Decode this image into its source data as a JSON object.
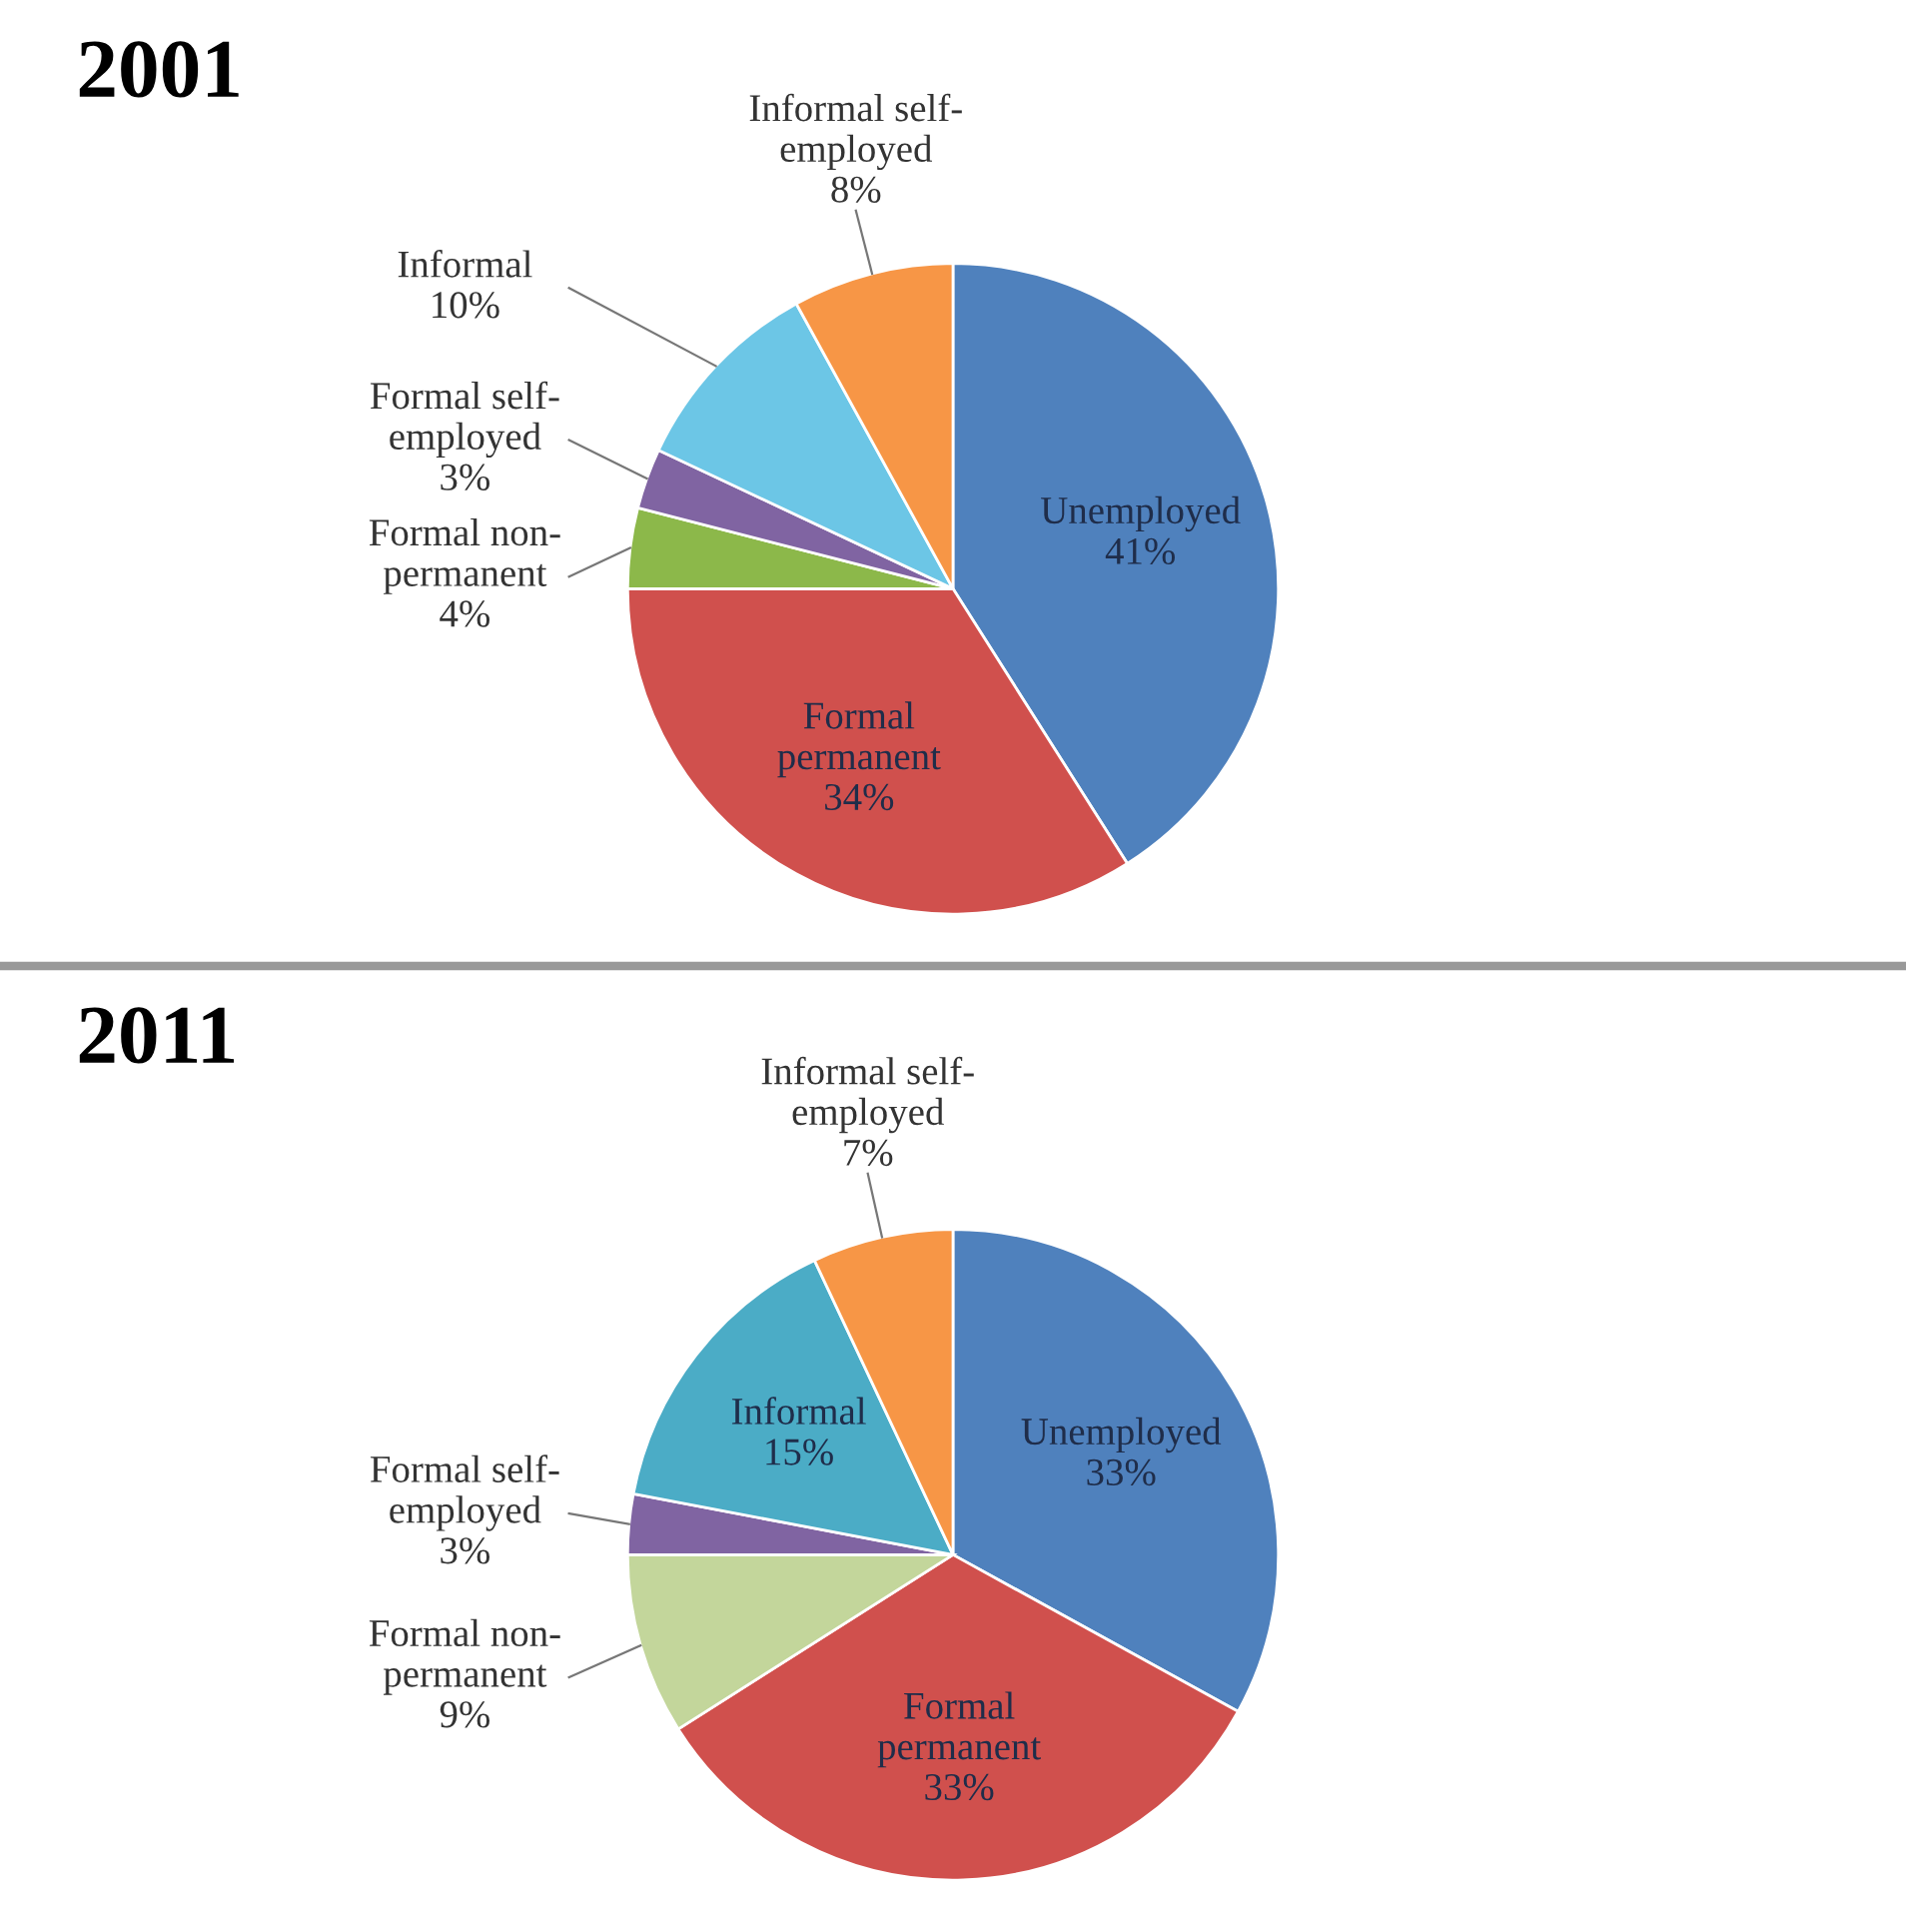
{
  "chart_data": [
    {
      "type": "pie",
      "title": "2001",
      "categories": [
        "Unemployed",
        "Formal\npermanent",
        "Formal non-\npermanent",
        "Formal self-\nemployed",
        "Informal",
        "Informal self-\nemployed"
      ],
      "values": [
        41,
        34,
        4,
        3,
        10,
        8
      ],
      "value_labels": [
        "41%",
        "34%",
        "4%",
        "3%",
        "10%",
        "8%"
      ],
      "colors": [
        "#4f81bd",
        "#d0504d",
        "#8cb84a",
        "#8064a2",
        "#6cc6e6",
        "#f79646"
      ]
    },
    {
      "type": "pie",
      "title": "2011",
      "categories": [
        "Unemployed",
        "Formal\npermanent",
        "Formal non-\npermanent",
        "Formal self-\nemployed",
        "Informal",
        "Informal self-\nemployed"
      ],
      "values": [
        33,
        33,
        9,
        3,
        15,
        7
      ],
      "value_labels": [
        "33%",
        "33%",
        "9%",
        "3%",
        "15%",
        "7%"
      ],
      "colors": [
        "#4f81bd",
        "#d0504d",
        "#c3d69b",
        "#8064a2",
        "#4bacc6",
        "#f79646"
      ]
    }
  ]
}
